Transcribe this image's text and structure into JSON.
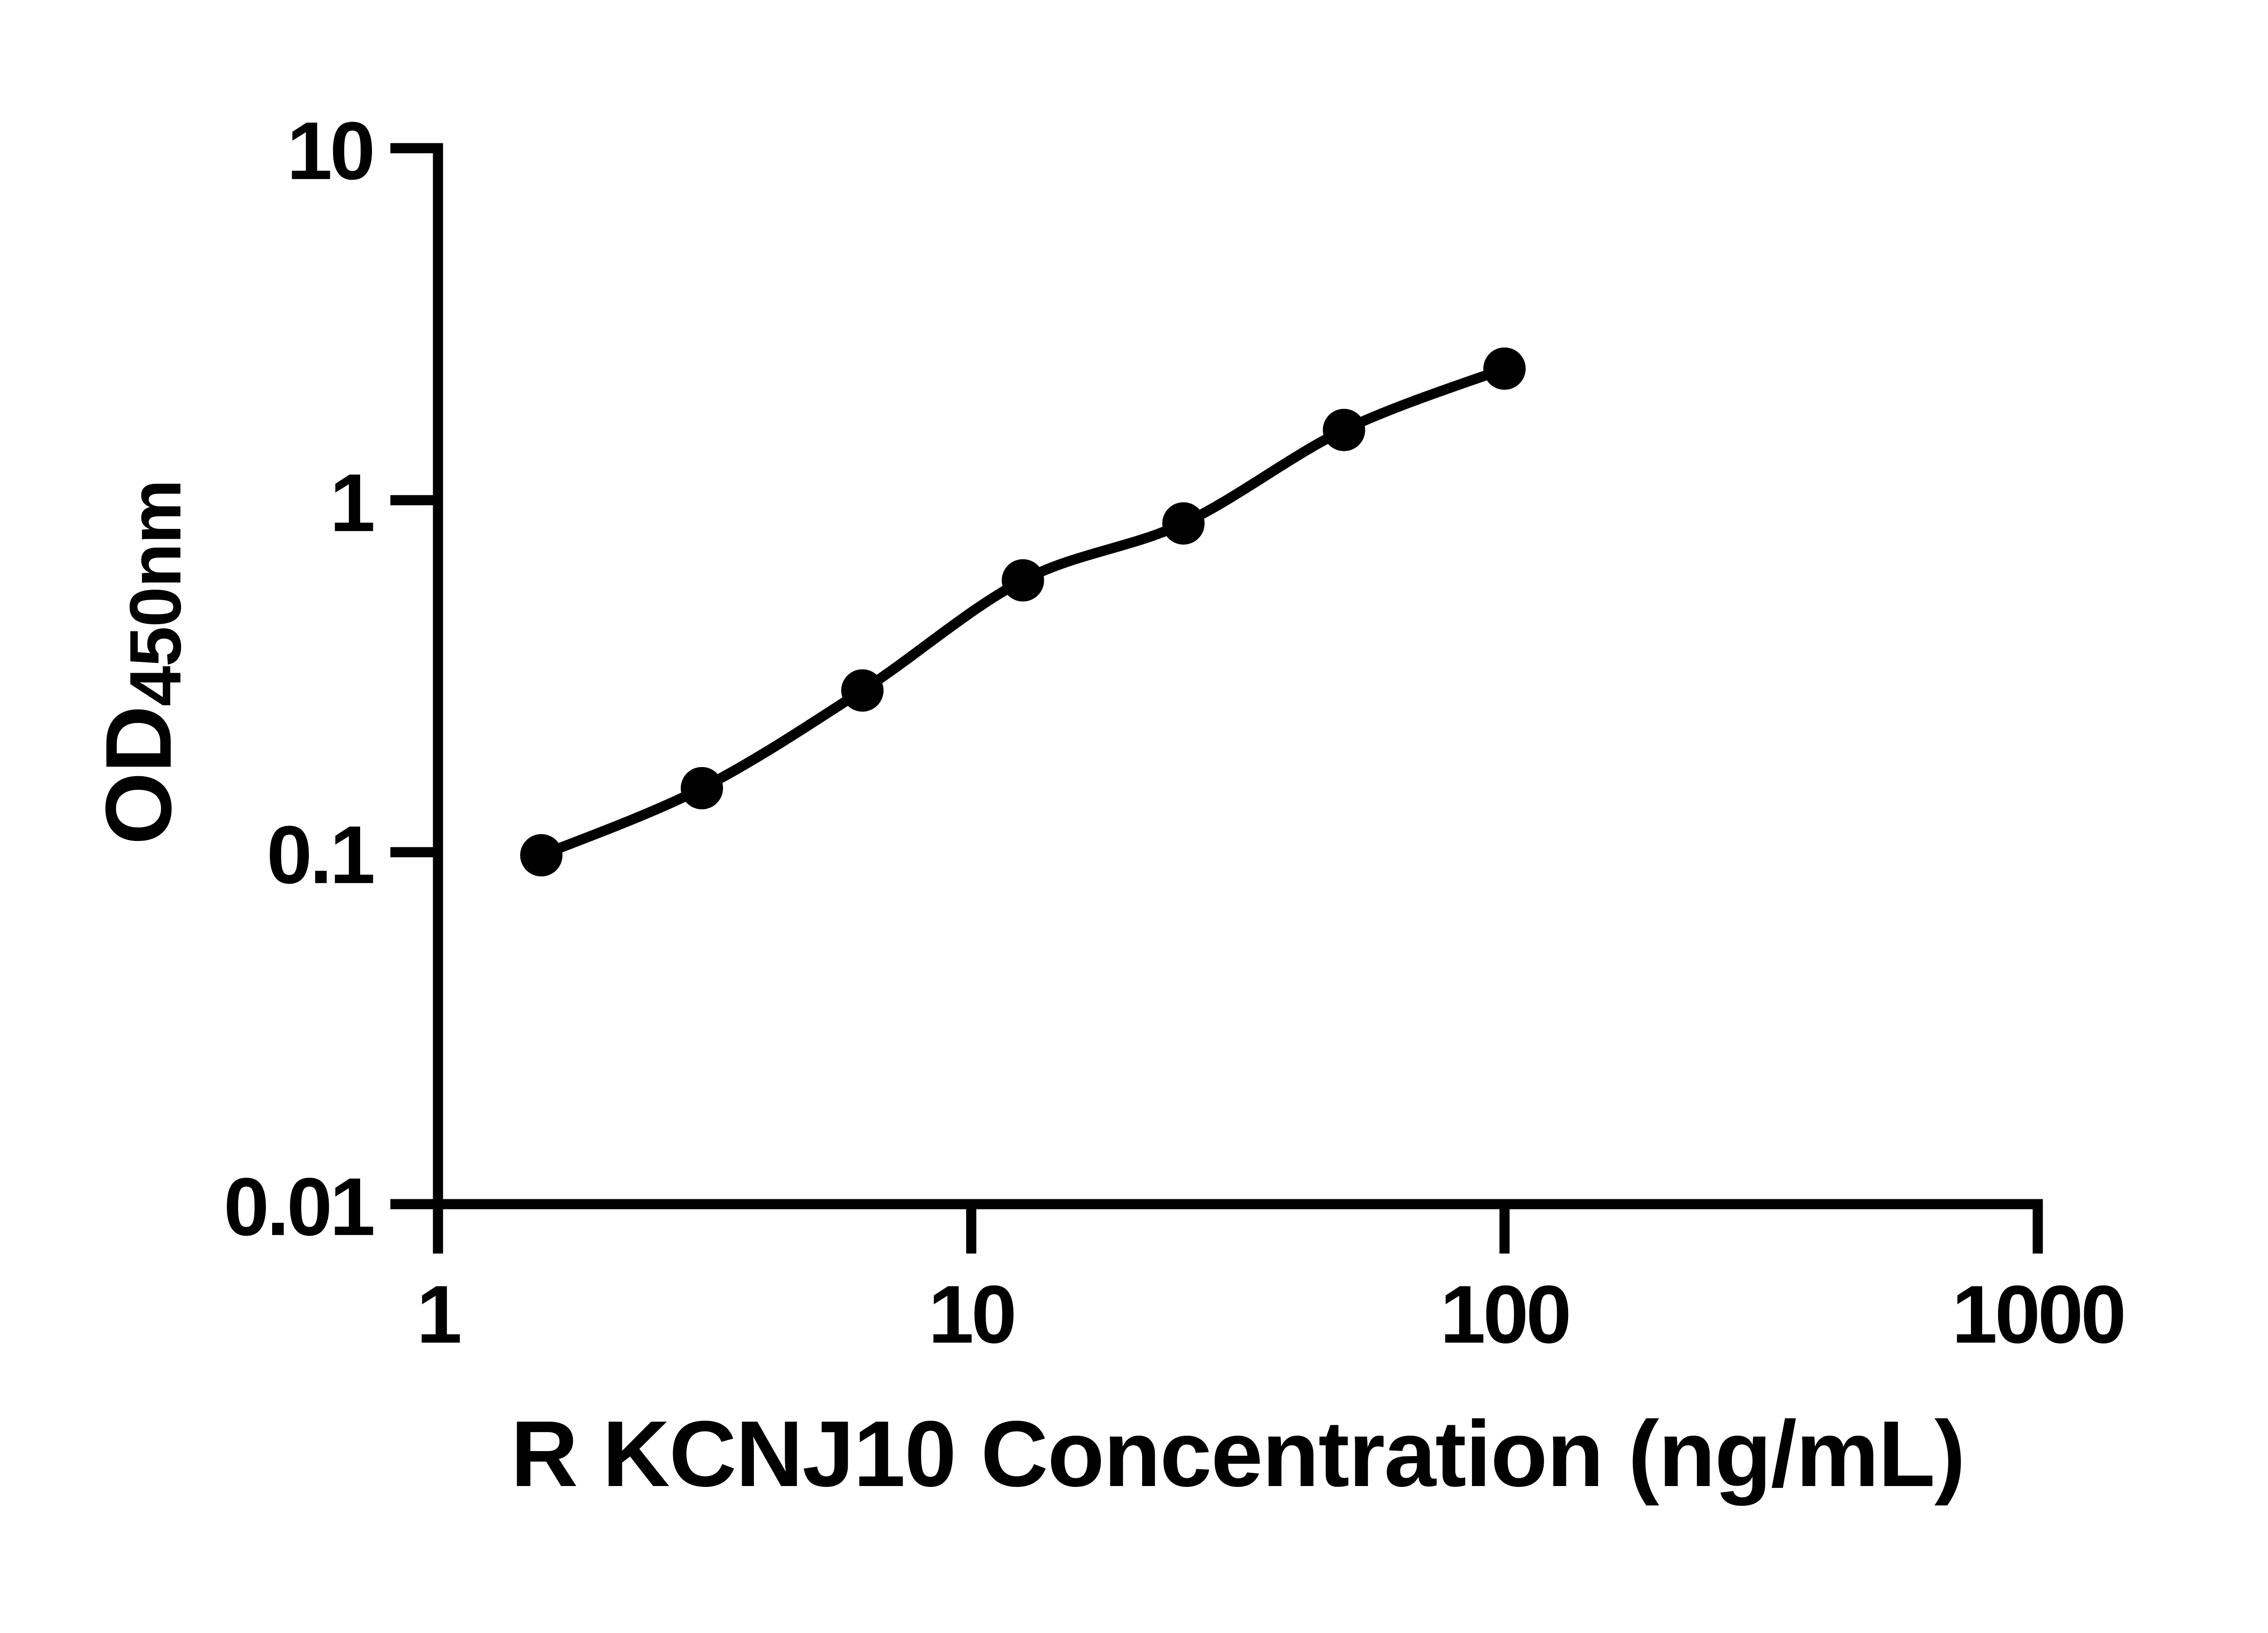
{
  "chart_data": {
    "type": "scatter",
    "subtype": "standard-curve-with-fit-line",
    "xlabel": "R KCNJ10 Concentration (ng/mL)",
    "ylabel": "OD",
    "ylabel_subscript": "450nm",
    "x_scale": "log",
    "y_scale": "log",
    "xlim": [
      1,
      1000
    ],
    "ylim": [
      0.01,
      10
    ],
    "grid": "off",
    "legend": "none",
    "x_ticks": [
      {
        "value": 1,
        "label": "1"
      },
      {
        "value": 10,
        "label": "10"
      },
      {
        "value": 100,
        "label": "100"
      },
      {
        "value": 1000,
        "label": "1000"
      }
    ],
    "y_ticks": [
      {
        "value": 10,
        "label": "10"
      },
      {
        "value": 1,
        "label": "1"
      },
      {
        "value": 0.1,
        "label": "0.1"
      },
      {
        "value": 0.01,
        "label": "0.01"
      }
    ],
    "series": [
      {
        "x": [
          1.5625,
          3.125,
          6.25,
          12.5,
          25,
          50,
          100
        ],
        "y": [
          0.098,
          0.152,
          0.288,
          0.592,
          0.859,
          1.583,
          2.365
        ]
      }
    ],
    "marker_color": "#000000",
    "line_color": "#000000",
    "axis_color": "#000000",
    "background_color": "#ffffff"
  }
}
